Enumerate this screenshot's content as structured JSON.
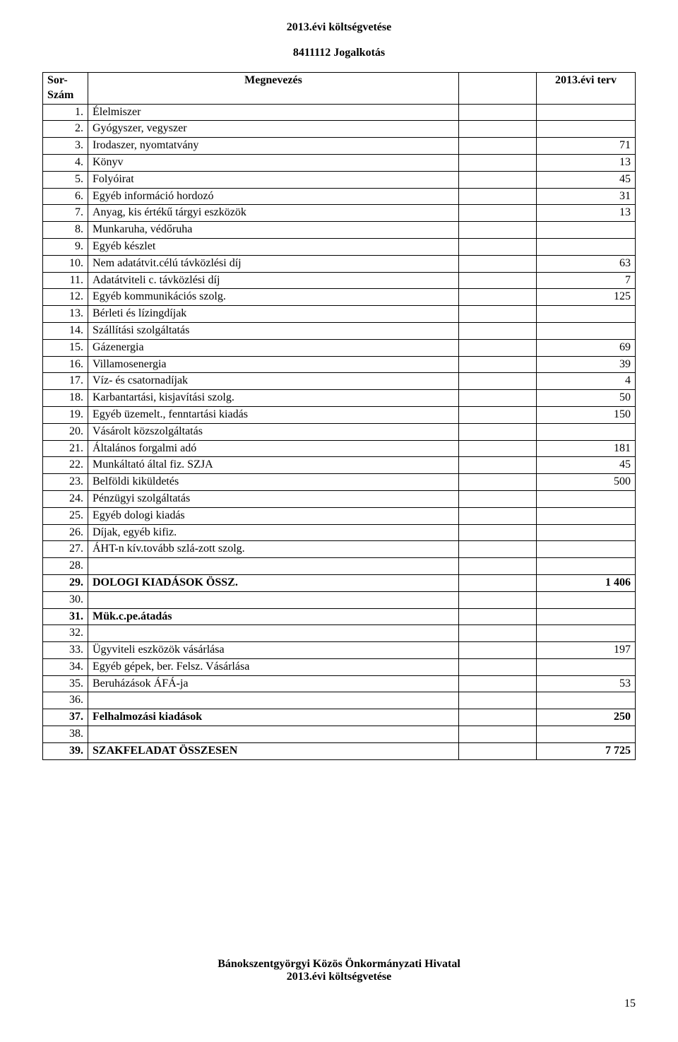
{
  "title": "2013.évi költségvetése",
  "subtitle": "8411112 Jogalkotás",
  "header": {
    "col1_line1": "Sor-",
    "col1_line2": "Szám",
    "col2": "Megnevezés",
    "col4": "2013.évi terv"
  },
  "rows": [
    {
      "num": "1.",
      "name": "Élelmiszer",
      "val": "",
      "bold": false
    },
    {
      "num": "2.",
      "name": "Gyógyszer, vegyszer",
      "val": "",
      "bold": false
    },
    {
      "num": "3.",
      "name": "Irodaszer, nyomtatvány",
      "val": "71",
      "bold": false
    },
    {
      "num": "4.",
      "name": "Könyv",
      "val": "13",
      "bold": false
    },
    {
      "num": "5.",
      "name": "Folyóirat",
      "val": "45",
      "bold": false
    },
    {
      "num": "6.",
      "name": "Egyéb információ hordozó",
      "val": "31",
      "bold": false
    },
    {
      "num": "7.",
      "name": "Anyag, kis értékű tárgyi eszközök",
      "val": "13",
      "bold": false
    },
    {
      "num": "8.",
      "name": "Munkaruha, védőruha",
      "val": "",
      "bold": false
    },
    {
      "num": "9.",
      "name": "Egyéb készlet",
      "val": "",
      "bold": false
    },
    {
      "num": "10.",
      "name": "Nem adatátvit.célú távközlési díj",
      "val": "63",
      "bold": false
    },
    {
      "num": "11.",
      "name": "Adatátviteli c. távközlési díj",
      "val": "7",
      "bold": false
    },
    {
      "num": "12.",
      "name": "Egyéb kommunikációs szolg.",
      "val": "125",
      "bold": false
    },
    {
      "num": "13.",
      "name": "Bérleti és lízingdíjak",
      "val": "",
      "bold": false
    },
    {
      "num": "14.",
      "name": "Szállítási szolgáltatás",
      "val": "",
      "bold": false
    },
    {
      "num": "15.",
      "name": "Gázenergia",
      "val": "69",
      "bold": false
    },
    {
      "num": "16.",
      "name": "Villamosenergia",
      "val": "39",
      "bold": false
    },
    {
      "num": "17.",
      "name": "Víz- és csatornadíjak",
      "val": "4",
      "bold": false
    },
    {
      "num": "18.",
      "name": "Karbantartási, kisjavítási szolg.",
      "val": "50",
      "bold": false
    },
    {
      "num": "19.",
      "name": "Egyéb üzemelt., fenntartási kiadás",
      "val": "150",
      "bold": false
    },
    {
      "num": "20.",
      "name": "Vásárolt közszolgáltatás",
      "val": "",
      "bold": false
    },
    {
      "num": "21.",
      "name": "Általános forgalmi adó",
      "val": "181",
      "bold": false
    },
    {
      "num": "22.",
      "name": "Munkáltató által fiz. SZJA",
      "val": "45",
      "bold": false
    },
    {
      "num": "23.",
      "name": "Belföldi kiküldetés",
      "val": "500",
      "bold": false
    },
    {
      "num": "24.",
      "name": "Pénzügyi szolgáltatás",
      "val": "",
      "bold": false
    },
    {
      "num": "25.",
      "name": "Egyéb dologi kiadás",
      "val": "",
      "bold": false
    },
    {
      "num": "26.",
      "name": "Díjak, egyéb kifiz.",
      "val": "",
      "bold": false
    },
    {
      "num": "27.",
      "name": "ÁHT-n kív.tovább szlá-zott szolg.",
      "val": "",
      "bold": false
    },
    {
      "num": "28.",
      "name": "",
      "val": "",
      "bold": false
    },
    {
      "num": "29.",
      "name": "DOLOGI KIADÁSOK ÖSSZ.",
      "val": "1 406",
      "bold": true
    },
    {
      "num": "30.",
      "name": "",
      "val": "",
      "bold": false
    },
    {
      "num": "31.",
      "name": "Mük.c.pe.átadás",
      "val": "",
      "bold": true
    },
    {
      "num": "32.",
      "name": "",
      "val": "",
      "bold": false
    },
    {
      "num": "33.",
      "name": "Ügyviteli eszközök vásárlása",
      "val": "197",
      "bold": false
    },
    {
      "num": "34.",
      "name": "Egyéb gépek, ber. Felsz. Vásárlása",
      "val": "",
      "bold": false
    },
    {
      "num": "35.",
      "name": "Beruházások ÁFÁ-ja",
      "val": "53",
      "bold": false
    },
    {
      "num": "36.",
      "name": "",
      "val": "",
      "bold": false
    },
    {
      "num": "37.",
      "name": "Felhalmozási kiadások",
      "val": "250",
      "bold": true
    },
    {
      "num": "38.",
      "name": "",
      "val": "",
      "bold": false
    },
    {
      "num": "39.",
      "name": "SZAKFELADAT ÖSSZESEN",
      "val": "7 725",
      "bold": true
    }
  ],
  "footer": {
    "line1": "Bánokszentgyörgyi Közös Önkormányzati Hivatal",
    "line2": "2013.évi költségvetése"
  },
  "page_number": "15"
}
